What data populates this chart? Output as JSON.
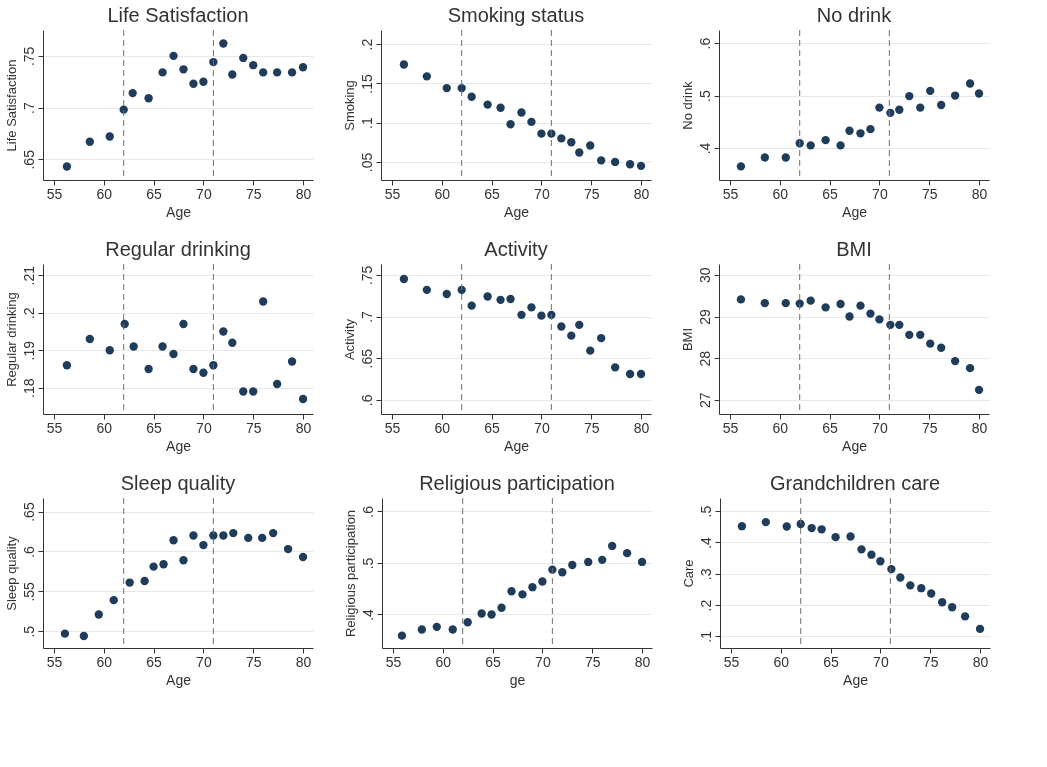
{
  "chart_data": [
    {
      "type": "scatter",
      "title": "Life Satisfaction",
      "xlabel": "Age",
      "ylabel": "Life Satisfaction",
      "color": "#1f3d5a",
      "marker": "circle",
      "grid": "y",
      "xlim": [
        53.9,
        81
      ],
      "xticks": [
        55,
        60,
        65,
        70,
        75,
        80
      ],
      "ylim": [
        0.63,
        0.775
      ],
      "yticks": [
        {
          "value": 0.65,
          "label": ".65"
        },
        {
          "value": 0.7,
          "label": ".7"
        },
        {
          "value": 0.75,
          "label": ".75"
        }
      ],
      "ref_lines": [
        {
          "axis": "x",
          "value": 62,
          "color": "#707070",
          "line_style": "dashed"
        },
        {
          "axis": "x",
          "value": 71,
          "color": "#707070",
          "line_style": "dashed"
        }
      ],
      "x": [
        56.3,
        58.6,
        60.6,
        62,
        62.9,
        64.5,
        65.9,
        67,
        68,
        69,
        70,
        71,
        72,
        72.9,
        74,
        75,
        76,
        77.4,
        78.9,
        80
      ],
      "values": [
        0.643,
        0.667,
        0.672,
        0.698,
        0.714,
        0.709,
        0.734,
        0.75,
        0.737,
        0.723,
        0.725,
        0.744,
        0.762,
        0.732,
        0.748,
        0.741,
        0.734,
        0.734,
        0.734,
        0.739
      ]
    },
    {
      "type": "scatter",
      "title": "Smoking status",
      "xlabel": "Age",
      "ylabel": "Smoking",
      "color": "#1f3d5a",
      "marker": "circle",
      "grid": "y",
      "xlim": [
        53.9,
        81
      ],
      "xticks": [
        55,
        60,
        65,
        70,
        75,
        80
      ],
      "ylim": [
        0.027,
        0.218
      ],
      "yticks": [
        {
          "value": 0.05,
          "label": ".05"
        },
        {
          "value": 0.1,
          "label": ".1"
        },
        {
          "value": 0.15,
          "label": ".15"
        },
        {
          "value": 0.2,
          "label": ".2"
        }
      ],
      "ref_lines": [
        {
          "axis": "x",
          "value": 62,
          "color": "#707070",
          "line_style": "dashed"
        },
        {
          "axis": "x",
          "value": 71,
          "color": "#707070",
          "line_style": "dashed"
        }
      ],
      "x": [
        56.2,
        58.5,
        60.5,
        62,
        63,
        64.6,
        65.9,
        66.9,
        68,
        69,
        70,
        71,
        72,
        73,
        73.8,
        74.9,
        76,
        77.4,
        78.9,
        80
      ],
      "values": [
        0.174,
        0.159,
        0.144,
        0.144,
        0.133,
        0.123,
        0.119,
        0.098,
        0.113,
        0.101,
        0.086,
        0.086,
        0.08,
        0.075,
        0.062,
        0.071,
        0.052,
        0.05,
        0.047,
        0.045
      ]
    },
    {
      "type": "scatter",
      "title": "No drink",
      "xlabel": "Age",
      "ylabel": "No drink",
      "color": "#1f3d5a",
      "marker": "circle",
      "grid": "y",
      "xlim": [
        53.9,
        81
      ],
      "xticks": [
        55,
        60,
        65,
        70,
        75,
        80
      ],
      "ylim": [
        0.339,
        0.625
      ],
      "yticks": [
        {
          "value": 0.4,
          "label": ".4"
        },
        {
          "value": 0.5,
          "label": ".5"
        },
        {
          "value": 0.6,
          "label": ".6"
        }
      ],
      "ref_lines": [
        {
          "axis": "x",
          "value": 62,
          "color": "#707070",
          "line_style": "dashed"
        },
        {
          "axis": "x",
          "value": 71,
          "color": "#707070",
          "line_style": "dashed"
        }
      ],
      "x": [
        56.1,
        58.5,
        60.6,
        62,
        63.1,
        64.6,
        66.1,
        67,
        68.1,
        69.1,
        70,
        71.1,
        72,
        73,
        74.1,
        75.1,
        76.2,
        77.6,
        79.1,
        80
      ],
      "values": [
        0.365,
        0.382,
        0.382,
        0.409,
        0.405,
        0.415,
        0.405,
        0.433,
        0.428,
        0.436,
        0.477,
        0.467,
        0.473,
        0.499,
        0.477,
        0.509,
        0.482,
        0.5,
        0.523,
        0.504
      ]
    },
    {
      "type": "scatter",
      "title": "Regular drinking",
      "xlabel": "Age",
      "ylabel": "Regular drinking",
      "color": "#1f3d5a",
      "marker": "circle",
      "grid": "y",
      "xlim": [
        53.9,
        81
      ],
      "xticks": [
        55,
        60,
        65,
        70,
        75,
        80
      ],
      "ylim": [
        0.173,
        0.213
      ],
      "yticks": [
        {
          "value": 0.18,
          "label": ".18"
        },
        {
          "value": 0.19,
          "label": ".19"
        },
        {
          "value": 0.2,
          "label": ".2"
        },
        {
          "value": 0.21,
          "label": ".21"
        }
      ],
      "ref_lines": [
        {
          "axis": "x",
          "value": 62,
          "color": "#707070",
          "line_style": "dashed"
        },
        {
          "axis": "x",
          "value": 71,
          "color": "#707070",
          "line_style": "dashed"
        }
      ],
      "x": [
        56.3,
        58.6,
        60.6,
        62.1,
        63,
        64.5,
        65.9,
        67,
        68,
        69,
        70,
        71,
        72,
        72.9,
        74,
        75,
        76,
        77.4,
        78.9,
        80
      ],
      "values": [
        0.186,
        0.193,
        0.19,
        0.197,
        0.191,
        0.185,
        0.191,
        0.189,
        0.197,
        0.185,
        0.184,
        0.186,
        0.195,
        0.192,
        0.179,
        0.179,
        0.203,
        0.181,
        0.187,
        0.177
      ]
    },
    {
      "type": "scatter",
      "title": "Activity",
      "xlabel": "Age",
      "ylabel": "Activity",
      "color": "#1f3d5a",
      "marker": "circle",
      "grid": "y",
      "xlim": [
        53.9,
        81
      ],
      "xticks": [
        55,
        60,
        65,
        70,
        75,
        80
      ],
      "ylim": [
        0.583,
        0.763
      ],
      "yticks": [
        {
          "value": 0.6,
          "label": ".6"
        },
        {
          "value": 0.65,
          "label": ".65"
        },
        {
          "value": 0.7,
          "label": ".7"
        },
        {
          "value": 0.75,
          "label": ".75"
        }
      ],
      "ref_lines": [
        {
          "axis": "x",
          "value": 62,
          "color": "#707070",
          "line_style": "dashed"
        },
        {
          "axis": "x",
          "value": 71,
          "color": "#707070",
          "line_style": "dashed"
        }
      ],
      "x": [
        56.2,
        58.5,
        60.5,
        62,
        63,
        64.6,
        65.9,
        66.9,
        68,
        69,
        70,
        71,
        72,
        73,
        73.8,
        74.9,
        76,
        77.4,
        78.9,
        80
      ],
      "values": [
        0.745,
        0.732,
        0.727,
        0.732,
        0.713,
        0.724,
        0.72,
        0.721,
        0.702,
        0.711,
        0.701,
        0.702,
        0.688,
        0.677,
        0.69,
        0.659,
        0.674,
        0.639,
        0.631,
        0.631
      ]
    },
    {
      "type": "scatter",
      "title": "BMI",
      "xlabel": "Age",
      "ylabel": "BMI",
      "color": "#1f3d5a",
      "marker": "circle",
      "grid": "y",
      "xlim": [
        53.9,
        81
      ],
      "xticks": [
        55,
        60,
        65,
        70,
        75,
        80
      ],
      "ylim": [
        26.66,
        30.26
      ],
      "yticks": [
        27,
        28,
        29,
        30
      ],
      "ref_lines": [
        {
          "axis": "x",
          "value": 62,
          "color": "#707070",
          "line_style": "dashed"
        },
        {
          "axis": "x",
          "value": 71,
          "color": "#707070",
          "line_style": "dashed"
        }
      ],
      "x": [
        56.1,
        58.5,
        60.6,
        62,
        63.1,
        64.6,
        66.1,
        67,
        68.1,
        69.1,
        70,
        71.1,
        72,
        73,
        74.1,
        75.1,
        76.2,
        77.6,
        79.1,
        80
      ],
      "values": [
        29.41,
        29.32,
        29.32,
        29.31,
        29.38,
        29.22,
        29.3,
        29.0,
        29.26,
        29.07,
        28.93,
        28.8,
        28.8,
        28.56,
        28.56,
        28.35,
        28.25,
        27.93,
        27.76,
        27.24
      ]
    },
    {
      "type": "scatter",
      "title": "Sleep quality",
      "xlabel": "Age",
      "ylabel": "Sleep quality",
      "color": "#1f3d5a",
      "marker": "circle",
      "grid": "y",
      "xlim": [
        53.9,
        81
      ],
      "xticks": [
        55,
        60,
        65,
        70,
        75,
        80
      ],
      "ylim": [
        0.479,
        0.667
      ],
      "yticks": [
        {
          "value": 0.5,
          "label": ".5"
        },
        {
          "value": 0.55,
          "label": ".55"
        },
        {
          "value": 0.6,
          "label": ".6"
        },
        {
          "value": 0.65,
          "label": ".65"
        }
      ],
      "ref_lines": [
        {
          "axis": "x",
          "value": 62,
          "color": "#707070",
          "line_style": "dashed"
        },
        {
          "axis": "x",
          "value": 71,
          "color": "#707070",
          "line_style": "dashed"
        }
      ],
      "x": [
        56.1,
        58,
        59.5,
        61,
        62.6,
        64.1,
        65,
        66,
        67,
        68,
        69,
        70,
        71,
        72,
        73,
        74.5,
        75.9,
        77,
        78.5,
        80
      ],
      "values": [
        0.497,
        0.494,
        0.521,
        0.539,
        0.561,
        0.563,
        0.581,
        0.584,
        0.614,
        0.589,
        0.62,
        0.608,
        0.62,
        0.62,
        0.623,
        0.617,
        0.617,
        0.623,
        0.603,
        0.593
      ]
    },
    {
      "type": "scatter",
      "title": "Religious participation",
      "xlabel": "ge",
      "ylabel": "Religious participation",
      "color": "#1f3d5a",
      "marker": "circle",
      "grid": "y",
      "xlim": [
        53.9,
        81
      ],
      "xticks": [
        55,
        60,
        65,
        70,
        75,
        80
      ],
      "ylim": [
        0.335,
        0.626
      ],
      "yticks": [
        {
          "value": 0.4,
          "label": ".4"
        },
        {
          "value": 0.5,
          "label": ".5"
        },
        {
          "value": 0.6,
          "label": ".6"
        }
      ],
      "ref_lines": [
        {
          "axis": "x",
          "value": 62,
          "color": "#707070",
          "line_style": "dashed"
        },
        {
          "axis": "x",
          "value": 71,
          "color": "#707070",
          "line_style": "dashed"
        }
      ],
      "x": [
        55.9,
        57.9,
        59.4,
        61,
        62.5,
        63.9,
        64.9,
        65.9,
        66.9,
        68,
        69,
        70,
        71,
        72,
        73,
        74.6,
        76,
        77,
        78.5,
        80
      ],
      "values": [
        0.359,
        0.371,
        0.376,
        0.371,
        0.385,
        0.402,
        0.4,
        0.413,
        0.445,
        0.439,
        0.453,
        0.464,
        0.487,
        0.482,
        0.496,
        0.502,
        0.506,
        0.533,
        0.519,
        0.502
      ]
    },
    {
      "type": "scatter",
      "title": "Grandchildren care",
      "xlabel": "Age",
      "ylabel": "Care",
      "color": "#1f3d5a",
      "marker": "circle",
      "grid": "y",
      "xlim": [
        53.9,
        81
      ],
      "xticks": [
        55,
        60,
        65,
        70,
        75,
        80
      ],
      "ylim": [
        0.063,
        0.542
      ],
      "yticks": [
        {
          "value": 0.1,
          "label": ".1"
        },
        {
          "value": 0.2,
          "label": ".2"
        },
        {
          "value": 0.3,
          "label": ".3"
        },
        {
          "value": 0.4,
          "label": ".4"
        },
        {
          "value": 0.5,
          "label": ".5"
        }
      ],
      "ref_lines": [
        {
          "axis": "x",
          "value": 62,
          "color": "#707070",
          "line_style": "dashed"
        },
        {
          "axis": "x",
          "value": 71,
          "color": "#707070",
          "line_style": "dashed"
        }
      ],
      "x": [
        56.1,
        58.5,
        60.6,
        62,
        63.1,
        64.1,
        65.5,
        67,
        68.1,
        69.1,
        70,
        71.1,
        72,
        73,
        74.1,
        75.1,
        76.2,
        77.2,
        78.5,
        80
      ],
      "values": [
        0.452,
        0.465,
        0.451,
        0.459,
        0.446,
        0.442,
        0.417,
        0.419,
        0.378,
        0.361,
        0.34,
        0.315,
        0.288,
        0.263,
        0.254,
        0.237,
        0.209,
        0.193,
        0.164,
        0.124
      ]
    }
  ]
}
